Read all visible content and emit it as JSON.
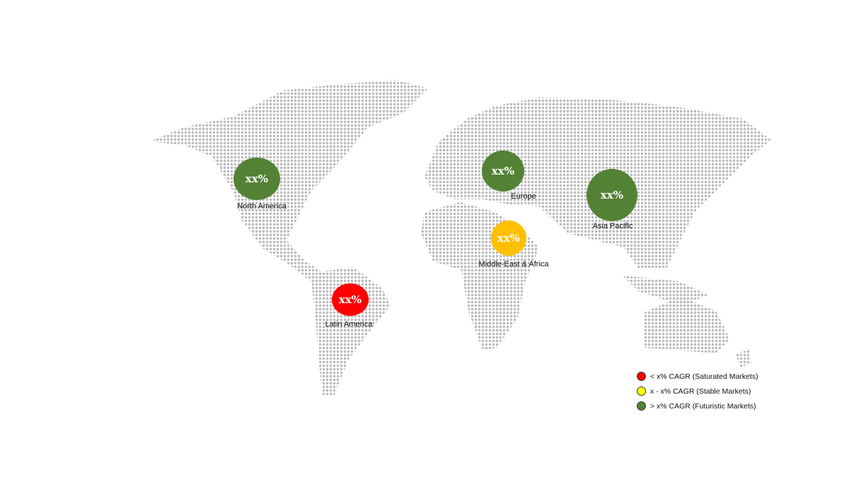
{
  "colors": {
    "futuristic": "#548235",
    "stable": "#FFC000",
    "saturated": "#FF0000",
    "legend_stable": "#FFFF00",
    "map_dots": "#b9b9b9"
  },
  "regions": [
    {
      "name": "North America",
      "value": "xx%",
      "category": "futuristic"
    },
    {
      "name": "Europe",
      "value": "xx%",
      "category": "futuristic"
    },
    {
      "name": "Asia Pacific",
      "value": "xx%",
      "category": "futuristic"
    },
    {
      "name": "Middle-East & Africa",
      "value": "xx%",
      "category": "stable"
    },
    {
      "name": "Latin America",
      "value": "xx%",
      "category": "saturated"
    }
  ],
  "legend": [
    {
      "label": "< x% CAGR (Saturated Markets)",
      "category": "saturated"
    },
    {
      "label": "x - x% CAGR (Stable Markets)",
      "category": "stable"
    },
    {
      "label": "> x% CAGR (Futuristic Markets)",
      "category": "futuristic"
    }
  ]
}
